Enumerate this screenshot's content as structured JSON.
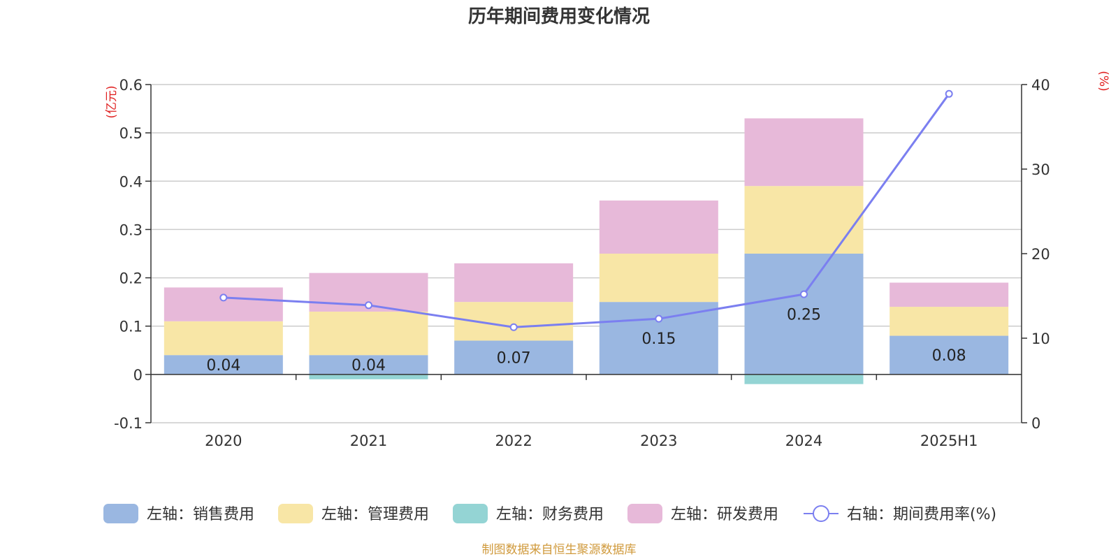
{
  "chart_data": {
    "type": "bar",
    "title": "历年期间费用变化情况",
    "categories": [
      "2020",
      "2021",
      "2022",
      "2023",
      "2024",
      "2025H1"
    ],
    "left_axis": {
      "unit": "(亿元)",
      "ylim": [
        -0.1,
        0.6
      ],
      "ticks": [
        "0.6",
        "0.5",
        "0.4",
        "0.3",
        "0.2",
        "0.1",
        "0",
        "-0.1"
      ]
    },
    "right_axis": {
      "unit": "(%)",
      "ylim": [
        0,
        40
      ],
      "ticks": [
        "40",
        "30",
        "20",
        "10",
        "0"
      ]
    },
    "series": [
      {
        "name": "左轴：销售费用",
        "kind": "bar",
        "color": "#9ab7e1",
        "values": [
          0.04,
          0.04,
          0.07,
          0.15,
          0.25,
          0.08
        ],
        "labels": [
          "0.04",
          "0.04",
          "0.07",
          "0.15",
          "0.25",
          "0.08"
        ]
      },
      {
        "name": "左轴：管理费用",
        "kind": "bar",
        "color": "#f8e6a6",
        "values": [
          0.07,
          0.09,
          0.08,
          0.1,
          0.14,
          0.06
        ]
      },
      {
        "name": "左轴：财务费用",
        "kind": "bar",
        "color": "#94d4d4",
        "values": [
          0.0,
          -0.01,
          0.0,
          0.0,
          -0.02,
          0.0
        ]
      },
      {
        "name": "左轴：研发费用",
        "kind": "bar",
        "color": "#e7b9d9",
        "values": [
          0.07,
          0.08,
          0.08,
          0.11,
          0.14,
          0.05
        ]
      },
      {
        "name": "右轴：期间费用率(%)",
        "kind": "line",
        "color": "#7b7ff0",
        "values": [
          14.8,
          13.9,
          11.3,
          12.3,
          15.2,
          38.9
        ]
      }
    ],
    "grid": true,
    "legend_position": "bottom"
  },
  "source_note": "制图数据来自恒生聚源数据库",
  "colors": {
    "unit_text": "#e02020",
    "source_text": "#d09a3c",
    "gridline": "#cccccc",
    "axis": "#333333"
  }
}
